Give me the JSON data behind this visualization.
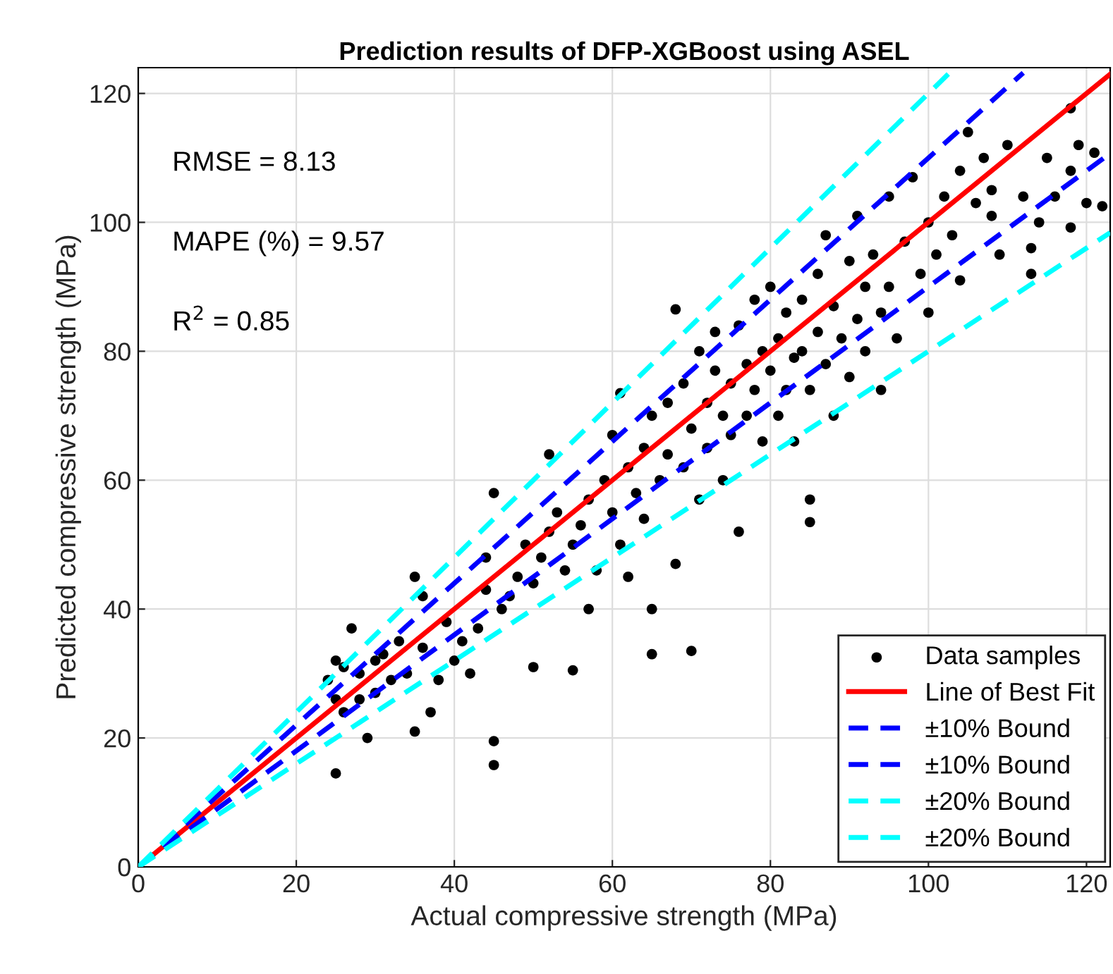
{
  "chart_data": {
    "type": "scatter",
    "title": "Prediction results of DFP-XGBoost using ASEL",
    "xlabel": "Actual compressive strength (MPa)",
    "ylabel": "Predicted compressive strength (MPa)",
    "xlim": [
      0,
      123
    ],
    "ylim": [
      0,
      124
    ],
    "xticks": [
      0,
      20,
      40,
      60,
      80,
      100,
      120
    ],
    "yticks": [
      0,
      20,
      40,
      60,
      80,
      100,
      120
    ],
    "grid": true,
    "legend": "bottom right",
    "annotations": [
      "RMSE = 8.13",
      "MAPE (%) = 9.57",
      "R$^{2}$ = 0.85"
    ],
    "series": [
      {
        "name": "Data samples",
        "marker": "circle",
        "color": "#000000",
        "x": [
          25,
          24,
          25,
          25,
          26,
          27,
          28,
          29,
          30,
          26,
          28,
          30,
          31,
          32,
          33,
          34,
          35,
          35,
          36,
          37,
          38,
          36,
          39,
          40,
          41,
          42,
          43,
          44,
          45,
          45,
          45,
          44,
          46,
          47,
          48,
          49,
          50,
          50,
          51,
          52,
          52,
          53,
          54,
          55,
          55,
          56,
          57,
          57,
          58,
          59,
          60,
          60,
          61,
          61,
          62,
          62,
          63,
          64,
          64,
          65,
          65,
          65,
          66,
          67,
          67,
          68,
          68,
          69,
          69,
          70,
          70,
          71,
          71,
          72,
          72,
          73,
          73,
          74,
          74,
          75,
          75,
          76,
          76,
          77,
          77,
          78,
          78,
          79,
          79,
          80,
          80,
          81,
          81,
          82,
          82,
          83,
          83,
          84,
          84,
          85,
          85,
          85,
          86,
          86,
          87,
          87,
          88,
          88,
          89,
          90,
          90,
          91,
          91,
          92,
          92,
          93,
          94,
          94,
          95,
          95,
          96,
          97,
          98,
          99,
          100,
          100,
          101,
          102,
          103,
          104,
          104,
          105,
          106,
          107,
          108,
          108,
          109,
          110,
          112,
          113,
          113,
          114,
          115,
          116,
          118,
          118,
          118,
          119,
          120,
          121,
          122
        ],
        "values": [
          14.5,
          29,
          32,
          26,
          31,
          37,
          30,
          20,
          32,
          24,
          26,
          27,
          33,
          29,
          35,
          30,
          45,
          21,
          34,
          24,
          29,
          42,
          38,
          32,
          35,
          30,
          37,
          43,
          19.5,
          15.8,
          58,
          48,
          40,
          42,
          45,
          50,
          44,
          31,
          48,
          64,
          52,
          55,
          46,
          50,
          30.5,
          53,
          57,
          40,
          46,
          60,
          55,
          67,
          73.5,
          50,
          62,
          45,
          58,
          65,
          54,
          40,
          33,
          70,
          60,
          72,
          64,
          86.5,
          47,
          75,
          62,
          68,
          33.5,
          80,
          57,
          72,
          65,
          77,
          83,
          70,
          60,
          75,
          67,
          84,
          52,
          78,
          70,
          74,
          88,
          80,
          66,
          77,
          90,
          82,
          70,
          74,
          86,
          79,
          66,
          88,
          80,
          57,
          53.5,
          74,
          92,
          83,
          78,
          98,
          87,
          70,
          82,
          94,
          76,
          85,
          101,
          80,
          90,
          95,
          86,
          74,
          104,
          90,
          82,
          97,
          107,
          92,
          100,
          86,
          95,
          104,
          98,
          108,
          91,
          114,
          103,
          110,
          101,
          105,
          95,
          112,
          104,
          96,
          92,
          100,
          110,
          104,
          117.7,
          108,
          99.2,
          112,
          103,
          110.8,
          102.5
        ]
      },
      {
        "name": "Line of Best Fit",
        "type": "line",
        "marker": "none",
        "line_style": "solid",
        "color": "#ff0000",
        "x": [
          0,
          123
        ],
        "values": [
          0,
          123
        ]
      },
      {
        "name": "±10% Bound",
        "type": "line",
        "marker": "none",
        "line_style": "dashed",
        "color": "#0000ff",
        "x": [
          0,
          112
        ],
        "values": [
          0,
          123.2
        ]
      },
      {
        "name": "±10% Bound",
        "type": "line",
        "marker": "none",
        "line_style": "dashed",
        "color": "#0000ff",
        "x": [
          0,
          123
        ],
        "values": [
          0,
          110.7
        ]
      },
      {
        "name": "±20% Bound",
        "type": "line",
        "marker": "none",
        "line_style": "dashed",
        "color": "#00ffff",
        "x": [
          0,
          103
        ],
        "values": [
          0,
          123.6
        ]
      },
      {
        "name": "±20% Bound",
        "type": "line",
        "marker": "none",
        "line_style": "dashed",
        "color": "#00ffff",
        "x": [
          0,
          123
        ],
        "values": [
          0,
          98.4
        ]
      }
    ]
  }
}
